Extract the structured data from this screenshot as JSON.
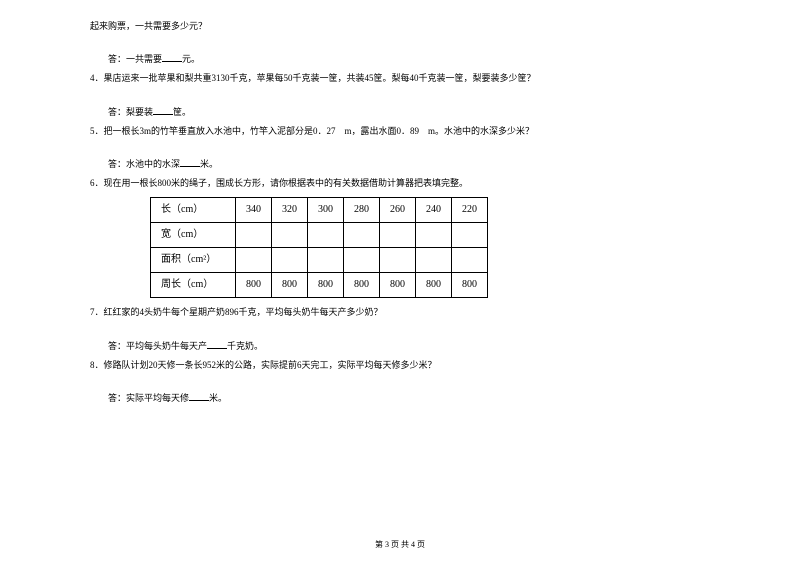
{
  "content": {
    "line1": "起来购票，一共需要多少元？",
    "answer1_prefix": "答：一共需要",
    "answer1_suffix": "元。",
    "problem4": "4．果店运来一批苹果和梨共重3130千克，苹果每50千克装一筐，共装45筐。梨每40千克装一筐，梨要装多少筐？",
    "answer4_prefix": "答：梨要装",
    "answer4_suffix": "筐。",
    "problem5": "5．把一根长3m的竹竿垂直放入水池中，竹竿入泥部分是0．27　m，露出水面0．89　m。水池中的水深多少米？",
    "answer5_prefix": "答：水池中的水深",
    "answer5_suffix": "米。",
    "problem6": "6．现在用一根长800米的绳子，围成长方形，请你根据表中的有关数据借助计算器把表填完整。",
    "problem7": "7．红红家的4头奶牛每个星期产奶896千克，平均每头奶牛每天产多少奶？",
    "answer7_prefix": "答：平均每头奶牛每天产",
    "answer7_suffix": "千克奶。",
    "problem8": "8．修路队计划20天修一条长952米的公路，实际提前6天完工，实际平均每天修多少米？",
    "answer8_prefix": "答：实际平均每天修",
    "answer8_suffix": "米。"
  },
  "table": {
    "row_labels": {
      "length": "长（cm）",
      "width": "宽（cm）",
      "area": "面积（cm²）",
      "perimeter": "周长（cm）"
    },
    "length_values": [
      "340",
      "320",
      "300",
      "280",
      "260",
      "240",
      "220"
    ],
    "perimeter_values": [
      "800",
      "800",
      "800",
      "800",
      "800",
      "800",
      "800"
    ]
  },
  "footer": "第 3 页 共 4 页"
}
